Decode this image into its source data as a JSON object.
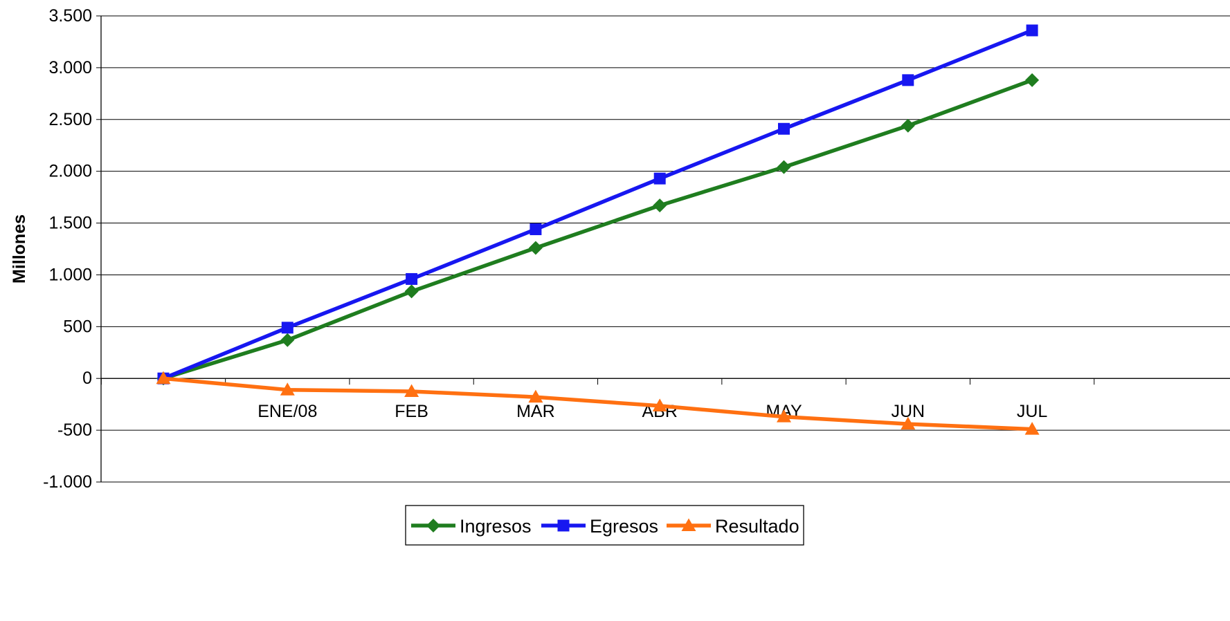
{
  "chart_data": {
    "type": "line",
    "title": "",
    "xlabel": "",
    "ylabel": "Millones",
    "ylim": [
      -1000,
      3500
    ],
    "yticks": [
      -1000,
      -500,
      0,
      500,
      1000,
      1500,
      2000,
      2500,
      3000,
      3500
    ],
    "ytick_labels": [
      "-1.000",
      "-500",
      "0",
      "500",
      "1.000",
      "1.500",
      "2.000",
      "2.500",
      "3.000",
      "3.500"
    ],
    "categories": [
      "",
      "ENE/08",
      "FEB",
      "MAR",
      "ABR",
      "MAY",
      "JUN",
      "JUL"
    ],
    "grid": "horizontal",
    "legend_position": "bottom-center",
    "series": [
      {
        "name": "Ingresos",
        "color": "#1f7d1f",
        "marker": "diamond",
        "values": [
          0,
          370,
          840,
          1260,
          1670,
          2040,
          2440,
          2880
        ]
      },
      {
        "name": "Egresos",
        "color": "#1717f0",
        "marker": "square",
        "values": [
          0,
          490,
          960,
          1440,
          1930,
          2410,
          2880,
          3360
        ]
      },
      {
        "name": "Resultado",
        "color": "#ff7011",
        "marker": "triangle",
        "values": [
          0,
          -110,
          -125,
          -180,
          -265,
          -370,
          -440,
          -490
        ]
      }
    ]
  }
}
